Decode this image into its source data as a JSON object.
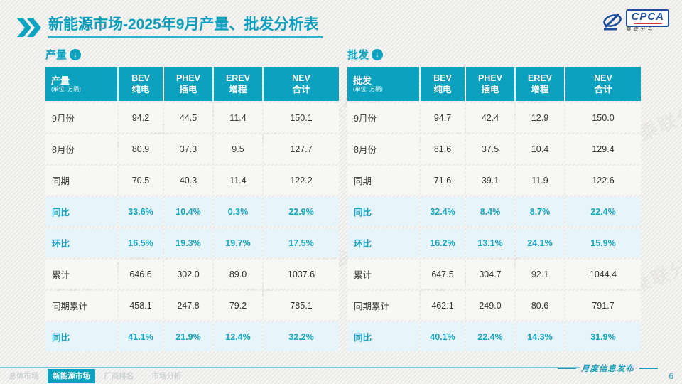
{
  "title": {
    "part1": "新能源市场",
    "part2": "-2025年9月产量、批发分析表"
  },
  "logo": {
    "brand": "CPCA",
    "sub": "乘联分会"
  },
  "watermark": "CPCA 乘联分会",
  "tables": [
    {
      "section": "产量",
      "unit": "(单位: 万辆)",
      "columns": [
        {
          "en": "BEV",
          "zh": "纯电"
        },
        {
          "en": "PHEV",
          "zh": "插电"
        },
        {
          "en": "EREV",
          "zh": "增程"
        },
        {
          "en": "NEV",
          "zh": "合计"
        }
      ],
      "rows": [
        {
          "label": "9月份",
          "values": [
            "94.2",
            "44.5",
            "11.4",
            "150.1"
          ],
          "highlight": false
        },
        {
          "label": "8月份",
          "values": [
            "80.9",
            "37.3",
            "9.5",
            "127.7"
          ],
          "highlight": false
        },
        {
          "label": "同期",
          "values": [
            "70.5",
            "40.3",
            "11.4",
            "122.2"
          ],
          "highlight": false
        },
        {
          "label": "同比",
          "values": [
            "33.6%",
            "10.4%",
            "0.3%",
            "22.9%"
          ],
          "highlight": true
        },
        {
          "label": "环比",
          "values": [
            "16.5%",
            "19.3%",
            "19.7%",
            "17.5%"
          ],
          "highlight": true
        },
        {
          "label": "累计",
          "values": [
            "646.6",
            "302.0",
            "89.0",
            "1037.6"
          ],
          "highlight": false
        },
        {
          "label": "同期累计",
          "values": [
            "458.1",
            "247.8",
            "79.2",
            "785.1"
          ],
          "highlight": false
        },
        {
          "label": "同比",
          "values": [
            "41.1%",
            "21.9%",
            "12.4%",
            "32.2%"
          ],
          "highlight": true
        }
      ]
    },
    {
      "section": "批发",
      "unit": "(单位: 万辆)",
      "columns": [
        {
          "en": "BEV",
          "zh": "纯电"
        },
        {
          "en": "PHEV",
          "zh": "插电"
        },
        {
          "en": "EREV",
          "zh": "增程"
        },
        {
          "en": "NEV",
          "zh": "合计"
        }
      ],
      "rows": [
        {
          "label": "9月份",
          "values": [
            "94.7",
            "42.4",
            "12.9",
            "150.0"
          ],
          "highlight": false
        },
        {
          "label": "8月份",
          "values": [
            "81.6",
            "37.5",
            "10.4",
            "129.4"
          ],
          "highlight": false
        },
        {
          "label": "同期",
          "values": [
            "71.6",
            "39.1",
            "11.9",
            "122.6"
          ],
          "highlight": false
        },
        {
          "label": "同比",
          "values": [
            "32.4%",
            "8.4%",
            "8.7%",
            "22.4%"
          ],
          "highlight": true
        },
        {
          "label": "环比",
          "values": [
            "16.2%",
            "13.1%",
            "24.1%",
            "15.9%"
          ],
          "highlight": true
        },
        {
          "label": "累计",
          "values": [
            "647.5",
            "304.7",
            "92.1",
            "1044.4"
          ],
          "highlight": false
        },
        {
          "label": "同期累计",
          "values": [
            "462.1",
            "249.0",
            "80.6",
            "791.7"
          ],
          "highlight": false
        },
        {
          "label": "同比",
          "values": [
            "40.1%",
            "22.4%",
            "14.3%",
            "31.9%"
          ],
          "highlight": true
        }
      ]
    }
  ],
  "footer": {
    "tabs": [
      {
        "label": "总体市场",
        "active": false
      },
      {
        "label": "新能源市场",
        "active": true
      },
      {
        "label": "厂商排名",
        "active": false
      },
      {
        "label": "市场分析",
        "active": false
      }
    ],
    "publish_label": "月度信息发布",
    "page_number": "6"
  }
}
